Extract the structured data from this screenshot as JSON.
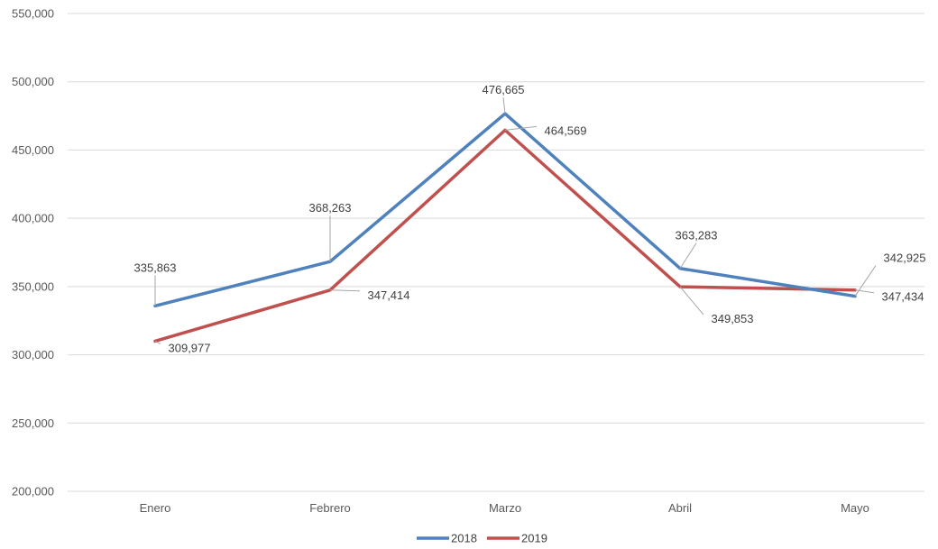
{
  "chart_data": {
    "type": "line",
    "categories": [
      "Enero",
      "Febrero",
      "Marzo",
      "Abril",
      "Mayo"
    ],
    "ylim": [
      200000,
      550000
    ],
    "yticks": [
      200000,
      250000,
      300000,
      350000,
      400000,
      450000,
      500000,
      550000
    ],
    "ytick_labels": [
      "200,000",
      "250,000",
      "300,000",
      "350,000",
      "400,000",
      "450,000",
      "500,000",
      "550,000"
    ],
    "grid": true,
    "legend_position": "bottom",
    "series": [
      {
        "name": "2018",
        "color": "#4f81bd",
        "values": [
          335863,
          368263,
          476665,
          363283,
          342925
        ],
        "labels": [
          "335,863",
          "368,263",
          "476,665",
          "363,283",
          "342,925"
        ]
      },
      {
        "name": "2019",
        "color": "#c0504d",
        "values": [
          309977,
          347414,
          464569,
          349853,
          347434
        ],
        "labels": [
          "309,977",
          "347,414",
          "464,569",
          "349,853",
          "347,434"
        ]
      }
    ]
  }
}
